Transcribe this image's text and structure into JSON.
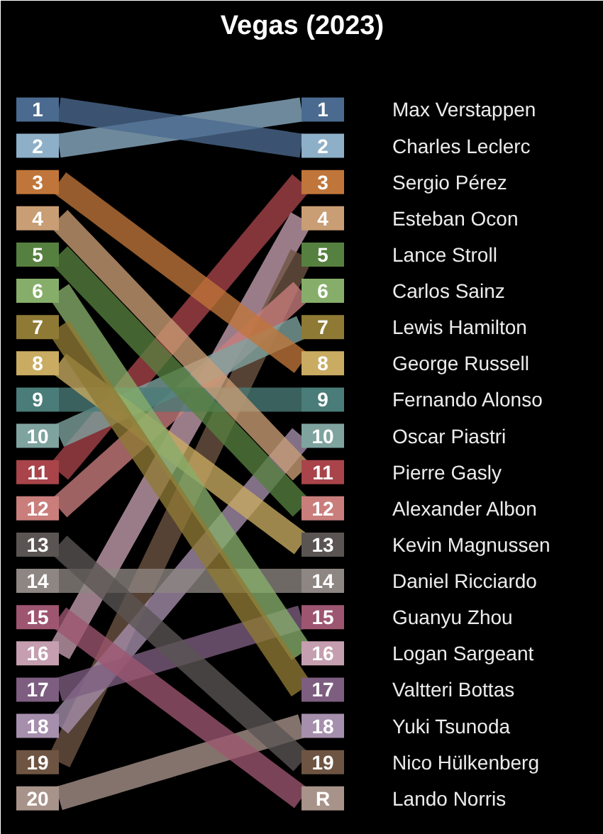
{
  "chart_data": {
    "type": "line",
    "title": "Vegas (2023)",
    "categories": [
      null,
      null
    ],
    "ylim": [
      21,
      -2
    ],
    "yticks": [
      1,
      2,
      3,
      4,
      5,
      6,
      7,
      8,
      9,
      10,
      11,
      12,
      13,
      14,
      15,
      16,
      17,
      18,
      19,
      20
    ],
    "y2lim": [
      21,
      -2
    ],
    "y2ticks": [
      1,
      2,
      3,
      4,
      5,
      6,
      7,
      8,
      9,
      10,
      11,
      12,
      13,
      14,
      15,
      16,
      17,
      18,
      19,
      {
        "value": 20,
        "label": "R"
      }
    ],
    "grid": false,
    "legend": false,
    "marker": "square",
    "line_style": "solid",
    "series": [
      {
        "name": "Max Verstappen",
        "color": "#8dafc8",
        "values": [
          2,
          1
        ]
      },
      {
        "name": "Charles Leclerc",
        "color": "#4b6a8f",
        "values": [
          1,
          2
        ]
      },
      {
        "name": "Sergio Pérez",
        "color": "#a8444a",
        "values": [
          11,
          3
        ]
      },
      {
        "name": "Esteban Ocon",
        "color": "#c59faf",
        "values": [
          16,
          4
        ]
      },
      {
        "name": "Lance Stroll",
        "color": "#6e5442",
        "values": [
          19,
          5
        ]
      },
      {
        "name": "Carlos Sainz",
        "color": "#c97e7c",
        "values": [
          12,
          6
        ]
      },
      {
        "name": "Lewis Hamilton",
        "color": "#7fa4a0",
        "values": [
          10,
          7
        ]
      },
      {
        "name": "George Russell",
        "color": "#c0763a",
        "values": [
          3,
          8
        ]
      },
      {
        "name": "Fernando Alonso",
        "color": "#4a7c79",
        "values": [
          9,
          9
        ]
      },
      {
        "name": "Oscar Piastri",
        "color": "#a68fad",
        "values": [
          18,
          10
        ]
      },
      {
        "name": "Pierre Gasly",
        "color": "#c99e74",
        "values": [
          4,
          11
        ]
      },
      {
        "name": "Alexander Albon",
        "color": "#56803f",
        "values": [
          5,
          12
        ]
      },
      {
        "name": "Kevin Magnussen",
        "color": "#c9ac62",
        "values": [
          8,
          13
        ]
      },
      {
        "name": "Daniel Ricciardo",
        "color": "#8d8682",
        "values": [
          14,
          14
        ]
      },
      {
        "name": "Guanyu Zhou",
        "color": "#7d5e80",
        "values": [
          17,
          15
        ]
      },
      {
        "name": "Logan Sargeant",
        "color": "#86ae6a",
        "values": [
          6,
          16
        ]
      },
      {
        "name": "Valtteri Bottas",
        "color": "#8f7a35",
        "values": [
          7,
          17
        ]
      },
      {
        "name": "Yuki Tsunoda",
        "color": "#a8938a",
        "values": [
          20,
          18
        ]
      },
      {
        "name": "Nico Hülkenberg",
        "color": "#5a5553",
        "values": [
          13,
          19
        ]
      },
      {
        "name": "Lando Norris",
        "color": "#9e5670",
        "values": [
          15,
          20
        ]
      }
    ]
  }
}
